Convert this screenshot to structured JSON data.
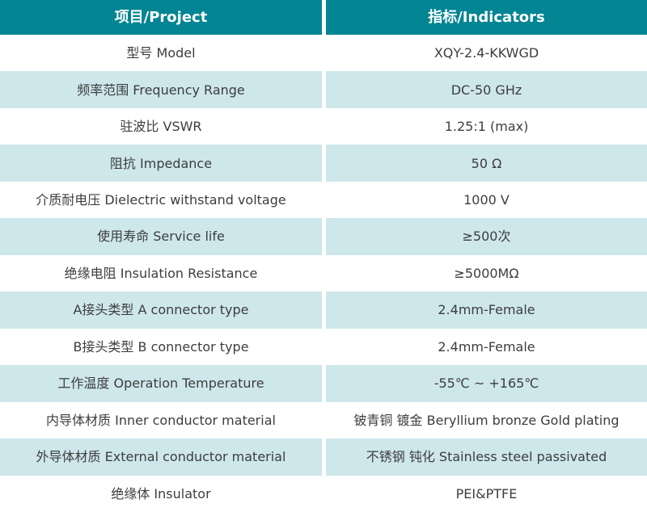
{
  "table": {
    "header": {
      "project": "项目/Project",
      "indicators": "指标/Indicators"
    },
    "rows": [
      {
        "project": "型号 Model",
        "indicator": "XQY-2.4-KKWGD"
      },
      {
        "project": "频率范围 Frequency Range",
        "indicator": "DC-50 GHz"
      },
      {
        "project": "驻波比 VSWR",
        "indicator": "1.25:1 (max)"
      },
      {
        "project": "阻抗 Impedance",
        "indicator": "50 Ω"
      },
      {
        "project": "介质耐电压 Dielectric withstand voltage",
        "indicator": "1000 V"
      },
      {
        "project": "使用寿命 Service life",
        "indicator": "≥500次"
      },
      {
        "project": "绝缘电阻 Insulation Resistance",
        "indicator": "≥5000MΩ"
      },
      {
        "project": "A接头类型 A connector type",
        "indicator": "2.4mm-Female"
      },
      {
        "project": "B接头类型 B connector type",
        "indicator": "2.4mm-Female"
      },
      {
        "project": "工作温度 Operation Temperature",
        "indicator": "-55℃ ~ +165℃"
      },
      {
        "project": "内导体材质 Inner conductor material",
        "indicator": "铍青铜 镀金 Beryllium bronze Gold plating"
      },
      {
        "project": "外导体材质 External conductor material",
        "indicator": "不锈钢 钝化 Stainless steel passivated"
      },
      {
        "project": "绝缘体 Insulator",
        "indicator": "PEI&PTFE"
      }
    ],
    "colors": {
      "header_bg": "#038593",
      "header_text": "#ffffff",
      "alt_row_bg": "#cee7eb",
      "plain_row_bg": "#ffffff",
      "body_text": "#3d3d3d"
    }
  }
}
